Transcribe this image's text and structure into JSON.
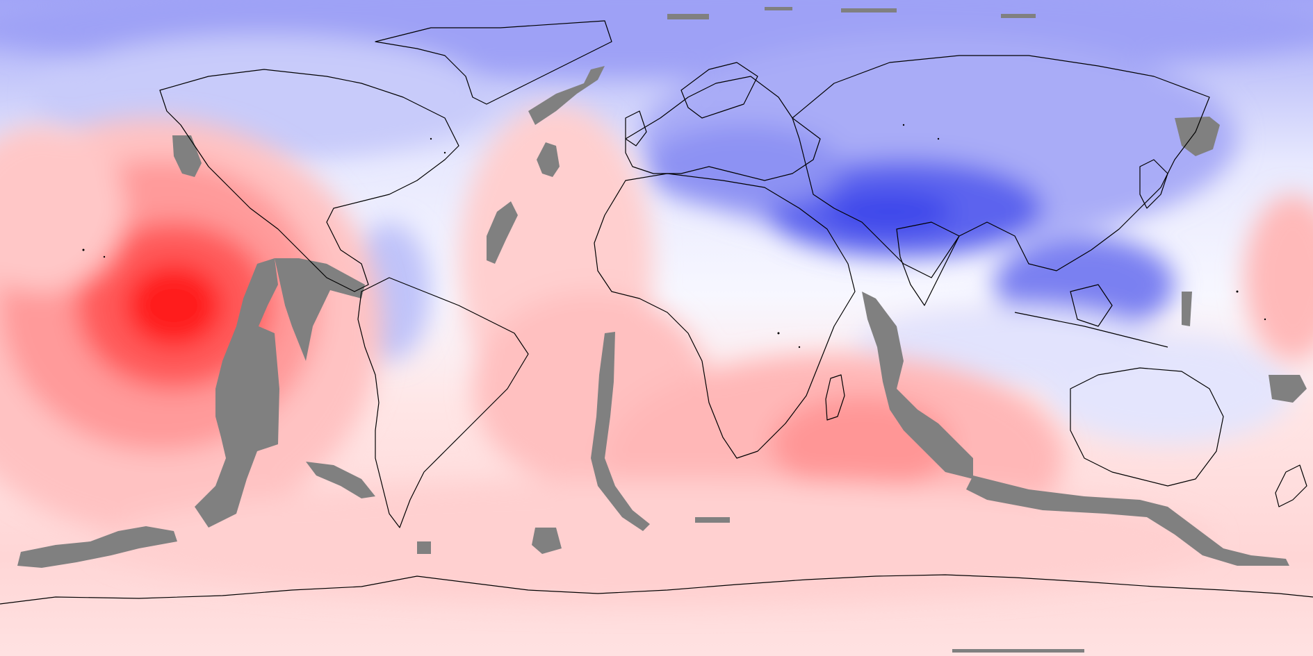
{
  "map": {
    "projection": "equirectangular",
    "field": "anomaly",
    "palette": {
      "negative_strong": "#2d3ef0",
      "negative_mid": "#8f95f5",
      "negative_weak": "#d6d9fc",
      "neutral": "#f7f7ff",
      "positive_weak": "#ffd9d9",
      "positive_mid": "#ff9e9e",
      "positive_strong": "#ff0000",
      "masked": "#808080",
      "coastline": "#000000"
    },
    "features": [
      "south-pacific-warm-anomaly",
      "south-indian-warm-anomaly",
      "tibetan-plateau-cold-anomaly",
      "arctic-cold-anomaly",
      "mid-ocean-ridge-mask"
    ]
  }
}
